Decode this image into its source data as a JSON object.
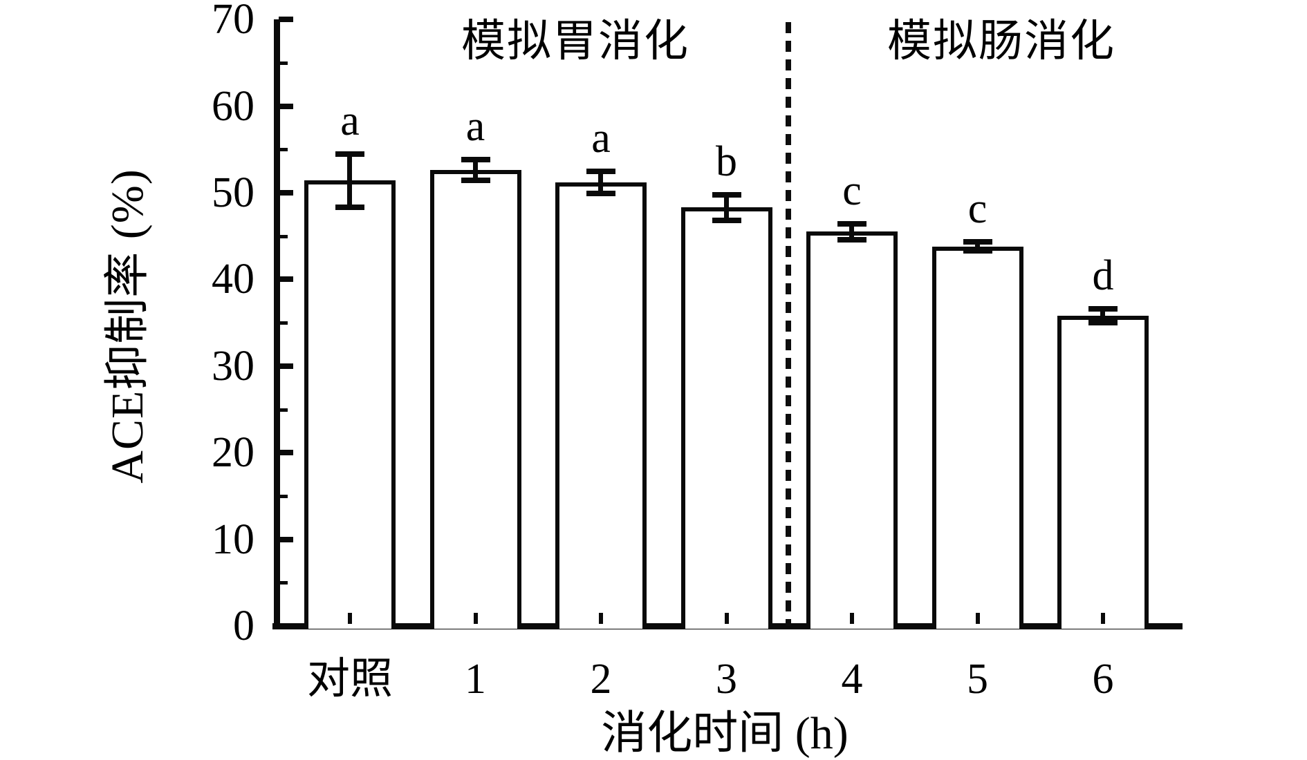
{
  "figure": {
    "background_color": "#ffffff",
    "ink_color": "#000000"
  },
  "chart_data": {
    "type": "bar",
    "title": "",
    "ylabel": "ACE抑制率 (%)",
    "xlabel": "消化时间 (h)",
    "ylim": [
      0,
      70
    ],
    "y_major_ticks": [
      0,
      10,
      20,
      30,
      40,
      50,
      60,
      70
    ],
    "y_minor_ticks": [
      5,
      15,
      25,
      35,
      45,
      55,
      65
    ],
    "grid": false,
    "legend": null,
    "region_titles": {
      "left": "模拟胃消化",
      "right": "模拟肠消化"
    },
    "separator": {
      "style": "dashed-vertical-line",
      "between_categories": [
        "3",
        "4"
      ]
    },
    "categories": [
      "对照",
      "1",
      "2",
      "3",
      "4",
      "5",
      "6"
    ],
    "values": [
      51.4,
      52.6,
      51.2,
      48.3,
      45.5,
      43.8,
      35.8
    ],
    "errors": [
      3.1,
      1.2,
      1.3,
      1.5,
      0.9,
      0.5,
      0.8
    ],
    "sig_letters": [
      "a",
      "a",
      "a",
      "b",
      "c",
      "c",
      "d"
    ],
    "bar_fill": "#ffffff",
    "bar_border_color": "#000000"
  }
}
